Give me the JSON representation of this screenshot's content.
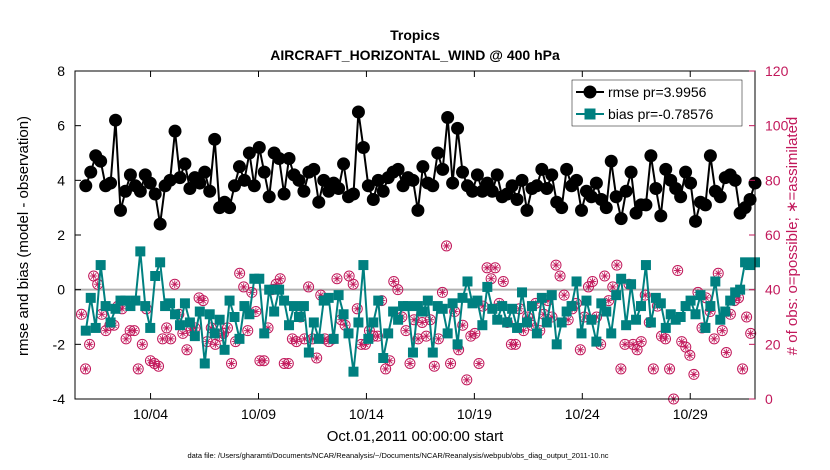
{
  "chart_data": {
    "type": "line",
    "title": "Tropics",
    "subtitle": "AIRCRAFT_HORIZONTAL_WIND @ 400 hPa",
    "xlabel": "Oct.01,2011 00:00:00 start",
    "ylabel": "rmse and bias (model - observation)",
    "y2label": "# of obs: o=possible; ∗=assimilated",
    "footnote": "data file: /Users/gharamti/Documents/NCAR/Reanalysis/~/Documents/NCAR/Reanalysis/webpub/obs_diag_output_2011-10.nc",
    "xlim": [
      0.5,
      32.0
    ],
    "ylim": [
      -4,
      8
    ],
    "y2lim": [
      0,
      120
    ],
    "yticks": [
      "-4",
      "-2",
      "0",
      "2",
      "4",
      "6",
      "8"
    ],
    "y2ticks": [
      "0",
      "20",
      "40",
      "60",
      "80",
      "100",
      "120"
    ],
    "xticks": [
      {
        "day": 4,
        "label": "10/04"
      },
      {
        "day": 9,
        "label": "10/09"
      },
      {
        "day": 14,
        "label": "10/14"
      },
      {
        "day": 19,
        "label": "10/19"
      },
      {
        "day": 24,
        "label": "10/24"
      },
      {
        "day": 29,
        "label": "10/29"
      }
    ],
    "series": [
      {
        "name": "rmse",
        "legend": "rmse pr=3.9956",
        "color": "#000000",
        "marker": "circle",
        "values": [
          3.8,
          4.3,
          4.9,
          4.7,
          3.8,
          3.9,
          6.2,
          2.9,
          3.6,
          4.2,
          3.8,
          3.6,
          4.2,
          3.9,
          3.5,
          2.4,
          3.8,
          4.0,
          5.8,
          4.1,
          4.6,
          3.7,
          4.1,
          3.9,
          4.3,
          3.6,
          5.5,
          3.0,
          3.2,
          3.0,
          3.8,
          4.5,
          4.0,
          5.0,
          3.8,
          5.2,
          4.3,
          3.4,
          5.0,
          4.8,
          3.5,
          4.8,
          4.2,
          4.0,
          3.6,
          4.3,
          4.4,
          3.2,
          4.0,
          3.6,
          3.9,
          3.7,
          4.6,
          3.4,
          3.5,
          6.5,
          5.2,
          3.8,
          3.3,
          4.0,
          3.6,
          4.1,
          4.3,
          4.4,
          3.8,
          4.1,
          4.0,
          2.9,
          4.5,
          3.9,
          3.8,
          5.0,
          4.4,
          6.3,
          3.9,
          5.9,
          4.3,
          3.8,
          3.6,
          4.2,
          3.6,
          3.9,
          3.6,
          4.2,
          3.4,
          3.5,
          3.8,
          3.3,
          4.0,
          2.9,
          3.7,
          3.8,
          4.4,
          3.7,
          4.2,
          3.2,
          3.0,
          4.4,
          3.8,
          4.0,
          2.9,
          3.6,
          3.4,
          3.9,
          3.3,
          3.0,
          4.7,
          3.4,
          2.6,
          3.6,
          4.3,
          2.8,
          3.1,
          3.1,
          4.9,
          3.7,
          2.7,
          4.4,
          4.0,
          3.7,
          3.4,
          4.3,
          3.9,
          2.5,
          3.2,
          3.1,
          4.9,
          3.6,
          3.4,
          4.1,
          4.2,
          4.0,
          2.8,
          3.0,
          3.3,
          3.9
        ]
      },
      {
        "name": "bias",
        "legend": "bias pr=-0.78576",
        "color": "#008080",
        "marker": "square",
        "values": [
          -1.5,
          -0.3,
          -1.4,
          0.9,
          -0.6,
          -1.2,
          -0.7,
          -0.4,
          -0.4,
          -0.6,
          -0.4,
          1.4,
          -0.6,
          -1.4,
          0.5,
          1.0,
          -0.6,
          -0.5,
          -0.9,
          -1.3,
          -0.5,
          -1.2,
          -1.7,
          -0.8,
          -2.7,
          -0.9,
          -1.6,
          -1.1,
          -2.2,
          -0.4,
          -1.0,
          -1.8,
          -0.6,
          -0.9,
          0.4,
          0.4,
          -1.6,
          0.0,
          -0.8,
          0.0,
          -0.4,
          -1.3,
          -0.6,
          -1.0,
          -0.6,
          -2.3,
          -1.2,
          -1.8,
          -0.4,
          -0.3,
          -1.8,
          -0.2,
          -0.9,
          -1.6,
          -3.0,
          -1.2,
          0.9,
          -1.8,
          -1.2,
          -0.4,
          -2.5,
          -1.6,
          -0.8,
          -1.1,
          -0.6,
          -0.6,
          -2.3,
          -0.6,
          -0.8,
          -0.4,
          -2.3,
          -0.6,
          -0.7,
          -1.6,
          -0.5,
          -2.0,
          -0.3,
          0.3,
          -0.5,
          -0.4,
          -1.3,
          0.1,
          -0.7,
          -1.1,
          -0.6,
          -1.2,
          -0.7,
          -1.4,
          -0.1,
          -1.2,
          -0.6,
          -1.6,
          -0.3,
          -1.2,
          -0.2,
          -2.0,
          -1.2,
          -0.8,
          -0.6,
          0.3,
          -1.6,
          -0.4,
          -1.1,
          -1.9,
          -0.5,
          -0.8,
          -1.6,
          -0.2,
          0.4,
          -1.3,
          0.2,
          -1.1,
          -0.6,
          0.9,
          -1.2,
          -0.3,
          -0.5,
          -1.4,
          -0.9,
          -1.1,
          -1.0,
          -0.6,
          -0.4,
          -0.9,
          -0.2,
          -1.4,
          -0.6,
          0.3,
          -1.1,
          -0.8,
          -0.4,
          -0.1,
          0.0,
          1.0,
          0.9,
          1.0
        ]
      }
    ],
    "obs_possible": [
      31,
      11,
      20,
      45,
      42,
      31,
      25,
      27,
      27,
      34,
      33,
      22,
      25,
      25,
      11,
      20,
      33,
      14,
      13,
      12,
      22,
      26,
      22,
      42,
      31,
      24,
      18,
      25,
      26,
      37,
      36,
      21,
      26,
      20,
      23,
      24,
      26,
      13,
      21,
      46,
      41,
      25,
      39,
      32,
      14,
      14,
      26,
      40,
      42,
      44,
      13,
      13,
      22,
      21,
      30,
      22,
      41,
      22,
      15,
      38,
      22,
      21,
      22,
      44,
      29,
      27,
      45,
      42,
      33,
      20,
      20,
      25,
      23,
      23,
      36,
      11,
      14,
      43,
      40,
      30,
      25,
      13,
      29,
      22,
      28,
      23,
      29,
      12,
      22,
      39,
      56,
      13,
      32,
      18,
      27,
      7,
      23,
      24,
      13,
      34,
      48,
      44,
      48,
      35,
      43,
      28,
      20,
      20,
      33,
      25,
      30,
      27,
      35,
      25,
      31,
      36,
      30,
      49,
      45,
      38,
      29,
      33,
      35,
      18,
      30,
      41,
      43,
      30,
      20,
      45,
      36,
      41,
      49,
      11,
      20,
      42,
      20,
      18,
      21,
      38,
      28,
      11,
      34,
      23,
      22,
      11,
      0,
      47,
      21,
      19,
      16,
      9,
      39,
      26,
      37,
      32,
      22,
      46,
      25,
      17,
      31,
      36,
      37,
      11,
      30,
      24
    ],
    "obs_assimilated": [
      31,
      11,
      20,
      45,
      42,
      31,
      25,
      27,
      27,
      34,
      33,
      22,
      25,
      25,
      11,
      20,
      33,
      14,
      13,
      12,
      22,
      26,
      22,
      42,
      31,
      24,
      18,
      25,
      26,
      37,
      36,
      21,
      26,
      20,
      23,
      24,
      26,
      13,
      21,
      46,
      41,
      25,
      39,
      32,
      14,
      14,
      26,
      40,
      42,
      44,
      13,
      13,
      22,
      21,
      30,
      22,
      41,
      22,
      15,
      38,
      22,
      21,
      22,
      44,
      29,
      27,
      45,
      42,
      33,
      20,
      20,
      25,
      23,
      23,
      36,
      11,
      14,
      43,
      40,
      30,
      25,
      13,
      29,
      22,
      28,
      23,
      29,
      12,
      22,
      39,
      56,
      13,
      32,
      18,
      27,
      7,
      23,
      24,
      13,
      34,
      48,
      44,
      48,
      35,
      43,
      28,
      20,
      20,
      33,
      25,
      30,
      27,
      35,
      25,
      31,
      36,
      30,
      49,
      45,
      38,
      29,
      33,
      35,
      18,
      30,
      41,
      43,
      30,
      20,
      45,
      36,
      41,
      49,
      11,
      20,
      42,
      20,
      18,
      21,
      38,
      28,
      11,
      34,
      23,
      22,
      11,
      0,
      47,
      21,
      19,
      16,
      9,
      39,
      26,
      37,
      32,
      22,
      46,
      25,
      17,
      31,
      36,
      37,
      11,
      30,
      24
    ]
  }
}
